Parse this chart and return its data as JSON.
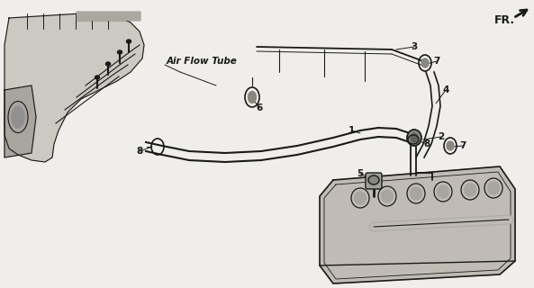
{
  "bg_color": "#f0eeeb",
  "line_color": "#1a1a1a",
  "fr_label": "FR.",
  "air_flow_tube_label": "Air Flow Tube",
  "fig_width": 5.93,
  "fig_height": 3.2,
  "dpi": 100,
  "manifold_color": "#c8c4be",
  "valve_cover_color": "#c0bcb5",
  "tube_color": "#b0aba4",
  "shadow_color": "#808080"
}
